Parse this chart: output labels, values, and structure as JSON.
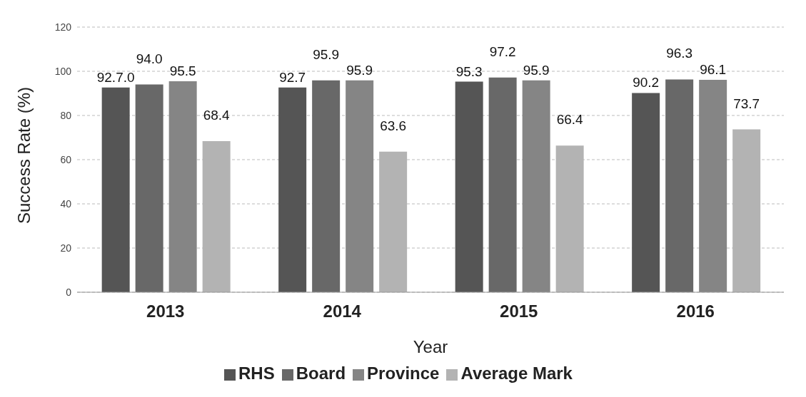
{
  "chart_data": {
    "type": "bar",
    "xlabel": "Year",
    "ylabel": "Success Rate (%)",
    "categories": [
      "2013",
      "2014",
      "2015",
      "2016"
    ],
    "series": [
      {
        "name": "RHS",
        "color": "#555555",
        "values": [
          92.7,
          92.7,
          95.3,
          90.2
        ],
        "value_labels": [
          "92.7.0",
          "92.7",
          "95.3",
          "90.2"
        ]
      },
      {
        "name": "Board",
        "color": "#686868",
        "values": [
          94.0,
          95.9,
          97.2,
          96.3
        ],
        "value_labels": [
          "94.0",
          "95.9",
          "97.2",
          "96.3"
        ]
      },
      {
        "name": "Province",
        "color": "#858585",
        "values": [
          95.5,
          95.9,
          95.9,
          96.1
        ],
        "value_labels": [
          "95.5",
          "95.9",
          "95.9",
          "96.1"
        ]
      },
      {
        "name": "Average Mark",
        "color": "#b3b3b3",
        "values": [
          68.4,
          63.6,
          66.4,
          73.7
        ],
        "value_labels": [
          "68.4",
          "63.6",
          "66.4",
          "73.7"
        ]
      }
    ],
    "ylim": [
      0,
      120
    ],
    "yticks": [
      0,
      20,
      40,
      60,
      80,
      100,
      120
    ],
    "grid": "y",
    "legend": "bottom"
  }
}
